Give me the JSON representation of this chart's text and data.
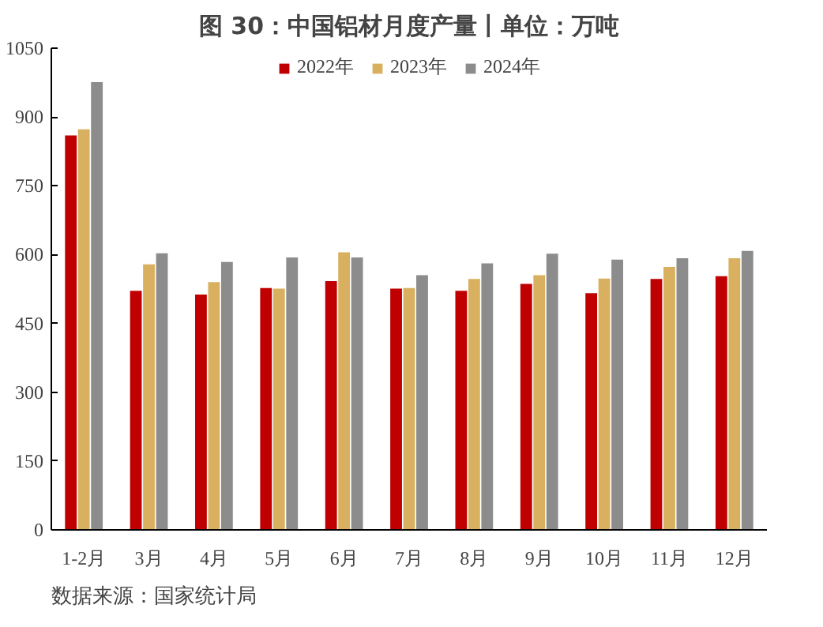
{
  "chart_data": {
    "type": "bar",
    "title": "图 30：中国铝材月度产量丨单位：万吨",
    "categories": [
      "1-2月",
      "3月",
      "4月",
      "5月",
      "6月",
      "7月",
      "8月",
      "9月",
      "10月",
      "11月",
      "12月"
    ],
    "series": [
      {
        "name": "2022年",
        "color": "#c00000",
        "values": [
          860,
          521,
          513,
          527,
          542,
          526,
          521,
          536,
          516,
          547,
          553
        ]
      },
      {
        "name": "2023年",
        "color": "#d9b05f",
        "values": [
          873,
          579,
          540,
          526,
          605,
          527,
          547,
          555,
          548,
          573,
          592
        ]
      },
      {
        "name": "2024年",
        "color": "#8c8c8c",
        "values": [
          976,
          603,
          584,
          594,
          594,
          555,
          581,
          602,
          589,
          592,
          608
        ]
      }
    ],
    "ylim": [
      0,
      1050
    ],
    "yticks": [
      0,
      150,
      300,
      450,
      600,
      750,
      900,
      1050
    ],
    "grid": false,
    "legend": "top",
    "annotations": [
      "数据来源：国家统计局"
    ]
  }
}
